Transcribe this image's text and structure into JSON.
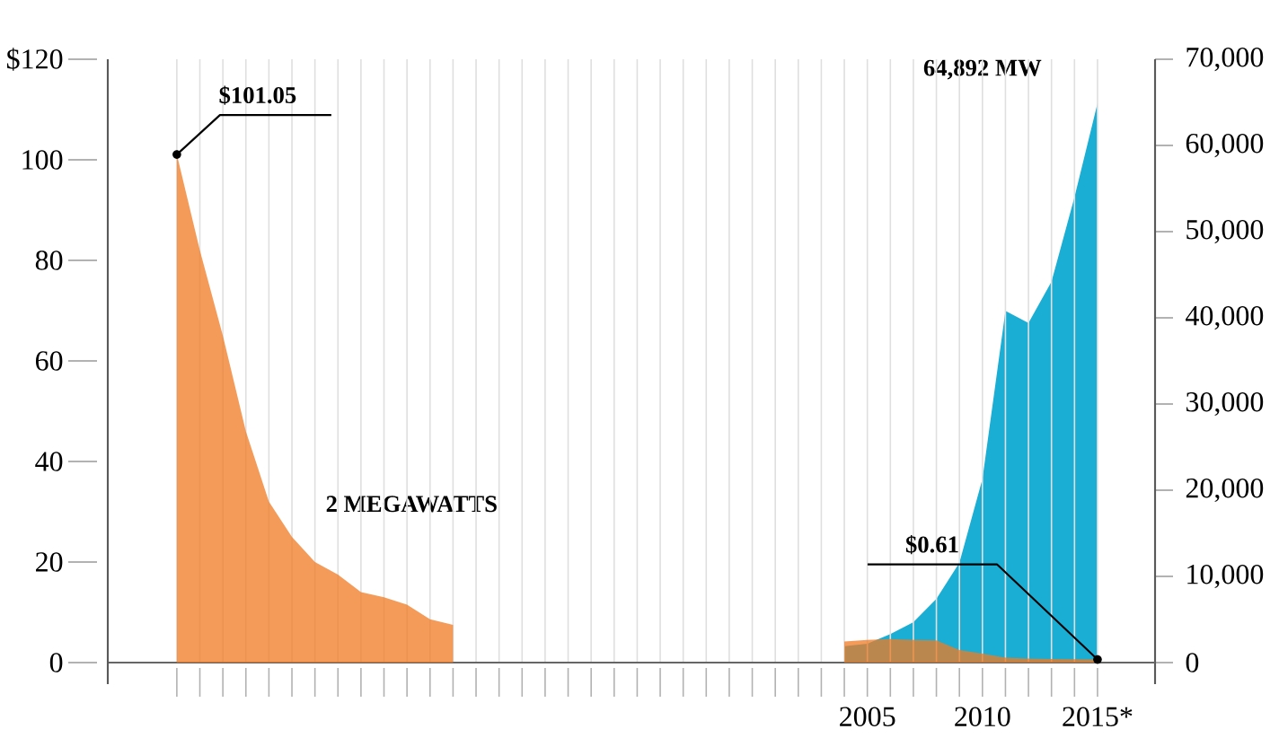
{
  "chart_data": {
    "type": "area",
    "x": [
      1975,
      1976,
      1977,
      1978,
      1979,
      1980,
      1981,
      1982,
      1983,
      1984,
      1985,
      1986,
      1987,
      1988,
      1989,
      1990,
      1991,
      1992,
      1993,
      1994,
      1995,
      1996,
      1997,
      1998,
      1999,
      2000,
      2001,
      2002,
      2003,
      2004,
      2005,
      2006,
      2007,
      2008,
      2009,
      2010,
      2011,
      2012,
      2013,
      2014,
      2015
    ],
    "series": [
      {
        "color": "#f07a22",
        "values": [
          101.05,
          82,
          65,
          46,
          32,
          25,
          20,
          17.5,
          14,
          13,
          11.5,
          8.6,
          7.5,
          null,
          null,
          null,
          null,
          null,
          null,
          null,
          null,
          null,
          null,
          null,
          null,
          null,
          null,
          null,
          null,
          4.2,
          4.5,
          4.7,
          4.5,
          4.4,
          2.5,
          1.8,
          1.0,
          0.8,
          0.7,
          0.65,
          0.61
        ]
      },
      {
        "color": "#1aaed4",
        "axis": "y2",
        "values": [
          null,
          null,
          null,
          null,
          null,
          null,
          null,
          null,
          null,
          null,
          null,
          null,
          null,
          null,
          null,
          null,
          null,
          null,
          null,
          null,
          null,
          null,
          null,
          null,
          null,
          null,
          null,
          null,
          null,
          1900,
          2200,
          3300,
          4700,
          7400,
          11600,
          21300,
          40800,
          39400,
          44200,
          54000,
          64892
        ]
      }
    ],
    "xlim": [
      1972,
      2017.5
    ],
    "xticks": [
      {
        "value": 1975,
        "label": null
      },
      {
        "value": 1976,
        "label": null
      },
      {
        "value": 1977,
        "label": null
      },
      {
        "value": 1978,
        "label": null
      },
      {
        "value": 1979,
        "label": null
      },
      {
        "value": 1980,
        "label": null
      },
      {
        "value": 1981,
        "label": null
      },
      {
        "value": 1982,
        "label": null
      },
      {
        "value": 1983,
        "label": null
      },
      {
        "value": 1984,
        "label": null
      },
      {
        "value": 1985,
        "label": null
      },
      {
        "value": 1986,
        "label": null
      },
      {
        "value": 1987,
        "label": null
      },
      {
        "value": 1988,
        "label": null
      },
      {
        "value": 1989,
        "label": null
      },
      {
        "value": 1990,
        "label": null
      },
      {
        "value": 1991,
        "label": null
      },
      {
        "value": 1992,
        "label": null
      },
      {
        "value": 1993,
        "label": null
      },
      {
        "value": 1994,
        "label": null
      },
      {
        "value": 1995,
        "label": null
      },
      {
        "value": 1996,
        "label": null
      },
      {
        "value": 1997,
        "label": null
      },
      {
        "value": 1998,
        "label": null
      },
      {
        "value": 1999,
        "label": null
      },
      {
        "value": 2000,
        "label": null
      },
      {
        "value": 2001,
        "label": null
      },
      {
        "value": 2002,
        "label": null
      },
      {
        "value": 2003,
        "label": null
      },
      {
        "value": 2004,
        "label": null
      },
      2005,
      {
        "value": 2006,
        "label": null
      },
      {
        "value": 2007,
        "label": null
      },
      {
        "value": 2008,
        "label": null
      },
      {
        "value": 2009,
        "label": null
      },
      2010,
      {
        "value": 2011,
        "label": null
      },
      {
        "value": 2012,
        "label": null
      },
      {
        "value": 2013,
        "label": null
      },
      {
        "value": 2014,
        "label": null
      },
      {
        "value": 2015,
        "label": "2015*"
      }
    ],
    "ylim": [
      0,
      120
    ],
    "yticks": [
      0,
      20,
      40,
      60,
      80,
      100,
      {
        "value": 120,
        "label": "$120"
      }
    ],
    "y2lim": [
      0,
      70000
    ],
    "y2ticks": [
      {
        "value": 0,
        "label": "0"
      },
      {
        "value": 10000,
        "label": "10,000"
      },
      {
        "value": 20000,
        "label": "20,000"
      },
      {
        "value": 30000,
        "label": "30,000"
      },
      {
        "value": 40000,
        "label": "40,000"
      },
      {
        "value": 50000,
        "label": "50,000"
      },
      {
        "value": 60000,
        "label": "60,000"
      },
      {
        "value": 70000,
        "label": "70,000"
      }
    ],
    "grid": "x",
    "annotations": [
      {
        "text": "$101.05",
        "x": 1975,
        "y": 101.05
      },
      "2 MEGAWATTS",
      "64,892 MW",
      {
        "text": "$0.61",
        "x": 2015,
        "y": 0.61
      }
    ]
  }
}
